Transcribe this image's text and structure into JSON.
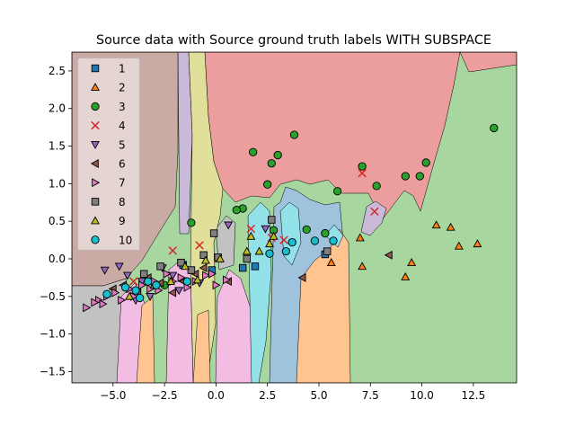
{
  "chart_data": {
    "type": "scatter",
    "title": "Source data with Source ground truth labels WITH SUBSPACE",
    "xlabel": "",
    "ylabel": "",
    "xlim": [
      -7.0,
      14.6
    ],
    "ylim": [
      -1.65,
      2.75
    ],
    "xticks": [
      -5.0,
      -2.5,
      0.0,
      2.5,
      5.0,
      7.5,
      10.0,
      12.5
    ],
    "xtick_labels": [
      "−5.0",
      "−2.5",
      "0.0",
      "2.5",
      "5.0",
      "7.5",
      "10.0",
      "12.5"
    ],
    "yticks": [
      -1.5,
      -1.0,
      -0.5,
      0.0,
      0.5,
      1.0,
      1.5,
      2.0,
      2.5
    ],
    "ytick_labels": [
      "−1.5",
      "−1.0",
      "−0.5",
      "0.0",
      "0.5",
      "1.0",
      "1.5",
      "2.0",
      "2.5"
    ],
    "grid": false,
    "legend_position": "top-left",
    "background_regions": [
      {
        "class": "1",
        "color": "#9fc2dd"
      },
      {
        "class": "2",
        "color": "#ffc48f"
      },
      {
        "class": "3",
        "color": "#a7d69f"
      },
      {
        "class": "4",
        "color": "#ec9e9f"
      },
      {
        "class": "5",
        "color": "#cab9d8"
      },
      {
        "class": "6",
        "color": "#c9aaa4"
      },
      {
        "class": "7",
        "color": "#f2bce3"
      },
      {
        "class": "8",
        "color": "#c2c2c2"
      },
      {
        "class": "9",
        "color": "#e0e09a"
      },
      {
        "class": "10",
        "color": "#93e2ea"
      }
    ],
    "series": [
      {
        "name": "1",
        "marker": "square",
        "color": "#1f77b4",
        "points": [
          [
            1.3,
            -0.12
          ],
          [
            1.9,
            -0.1
          ],
          [
            5.3,
            0.06
          ],
          [
            -1.6,
            -0.08
          ],
          [
            -0.2,
            -0.15
          ]
        ]
      },
      {
        "name": "2",
        "marker": "triangle-up",
        "color": "#ff7f0e",
        "points": [
          [
            7.0,
            0.28
          ],
          [
            7.1,
            -0.1
          ],
          [
            10.7,
            0.45
          ],
          [
            11.4,
            0.42
          ],
          [
            12.7,
            0.2
          ],
          [
            11.8,
            0.17
          ],
          [
            9.5,
            -0.05
          ],
          [
            9.2,
            -0.24
          ],
          [
            5.6,
            -0.05
          ]
        ]
      },
      {
        "name": "3",
        "marker": "circle",
        "color": "#2ca02c",
        "points": [
          [
            13.5,
            1.74
          ],
          [
            10.2,
            1.28
          ],
          [
            9.2,
            1.1
          ],
          [
            9.9,
            1.1
          ],
          [
            7.8,
            0.97
          ],
          [
            7.1,
            1.23
          ],
          [
            3.8,
            1.65
          ],
          [
            1.8,
            1.42
          ],
          [
            2.7,
            1.27
          ],
          [
            3.0,
            1.38
          ],
          [
            2.5,
            0.99
          ],
          [
            5.9,
            0.9
          ],
          [
            1.3,
            0.67
          ],
          [
            1.0,
            0.65
          ],
          [
            -1.2,
            0.48
          ],
          [
            4.4,
            0.39
          ],
          [
            2.8,
            0.38
          ],
          [
            5.3,
            0.34
          ],
          [
            -2.5,
            -0.35
          ]
        ]
      },
      {
        "name": "4",
        "marker": "x",
        "color": "#d62728",
        "points": [
          [
            7.1,
            1.14
          ],
          [
            7.7,
            0.63
          ],
          [
            -2.1,
            0.11
          ],
          [
            -0.8,
            0.18
          ],
          [
            3.3,
            0.25
          ],
          [
            1.7,
            0.4
          ],
          [
            2.7,
            0.28
          ],
          [
            0.1,
            0.0
          ],
          [
            -4.0,
            -0.3
          ]
        ]
      },
      {
        "name": "5",
        "marker": "triangle-down",
        "color": "#9467bd",
        "points": [
          [
            -5.4,
            -0.15
          ],
          [
            -4.7,
            -0.1
          ],
          [
            -4.3,
            -0.22
          ],
          [
            -3.6,
            -0.3
          ],
          [
            -3.9,
            -0.55
          ],
          [
            -2.6,
            -0.12
          ],
          [
            -2.1,
            -0.22
          ],
          [
            -0.8,
            -0.32
          ],
          [
            0.6,
            0.45
          ],
          [
            2.4,
            0.4
          ],
          [
            -1.8,
            -0.42
          ],
          [
            -3.2,
            -0.5
          ]
        ]
      },
      {
        "name": "6",
        "marker": "triangle-left",
        "color": "#8c564b",
        "points": [
          [
            8.4,
            0.05
          ],
          [
            4.2,
            -0.25
          ],
          [
            -0.6,
            -0.12
          ],
          [
            -1.0,
            -0.2
          ],
          [
            0.6,
            -0.3
          ],
          [
            -3.3,
            -0.25
          ],
          [
            -2.7,
            -0.32
          ],
          [
            -4.5,
            -0.35
          ],
          [
            -5.0,
            -0.4
          ],
          [
            -1.6,
            -0.3
          ],
          [
            -2.1,
            -0.45
          ],
          [
            -3.8,
            -0.45
          ]
        ]
      },
      {
        "name": "7",
        "marker": "triangle-right",
        "color": "#e377c2",
        "points": [
          [
            -6.3,
            -0.65
          ],
          [
            -5.7,
            -0.55
          ],
          [
            -5.5,
            -0.6
          ],
          [
            -5.3,
            -0.5
          ],
          [
            -4.9,
            -0.45
          ],
          [
            -4.6,
            -0.55
          ],
          [
            -4.2,
            -0.4
          ],
          [
            -3.6,
            -0.35
          ],
          [
            -3.2,
            -0.4
          ],
          [
            -2.8,
            -0.42
          ],
          [
            -2.4,
            -0.2
          ],
          [
            -2.1,
            -0.3
          ],
          [
            -1.7,
            -0.25
          ],
          [
            -1.4,
            -0.38
          ],
          [
            -1.0,
            -0.3
          ],
          [
            -0.5,
            -0.22
          ],
          [
            0.0,
            -0.35
          ],
          [
            0.5,
            -0.28
          ],
          [
            -5.9,
            -0.58
          ],
          [
            -4.0,
            -0.5
          ],
          [
            -3.0,
            -0.3
          ],
          [
            -0.2,
            -0.2
          ]
        ]
      },
      {
        "name": "8",
        "marker": "square",
        "color": "#7f7f7f",
        "points": [
          [
            -0.1,
            0.34
          ],
          [
            0.1,
            0.02
          ],
          [
            2.7,
            0.52
          ],
          [
            5.4,
            0.1
          ],
          [
            -1.7,
            -0.05
          ],
          [
            -2.7,
            -0.1
          ],
          [
            -1.2,
            -0.15
          ],
          [
            -3.5,
            -0.2
          ],
          [
            -0.6,
            0.05
          ],
          [
            1.5,
            0.0
          ]
        ]
      },
      {
        "name": "9",
        "marker": "triangle-up",
        "color": "#bcbd22",
        "points": [
          [
            1.7,
            0.3
          ],
          [
            2.8,
            0.3
          ],
          [
            2.6,
            0.2
          ],
          [
            1.5,
            0.1
          ],
          [
            2.1,
            0.1
          ],
          [
            -0.5,
            -0.02
          ],
          [
            0.2,
            0.0
          ],
          [
            -1.5,
            -0.1
          ],
          [
            -3.0,
            -0.35
          ],
          [
            -2.2,
            -0.3
          ],
          [
            -4.2,
            -0.5
          ],
          [
            -0.9,
            -0.28
          ]
        ]
      },
      {
        "name": "10",
        "marker": "circle",
        "color": "#17becf",
        "points": [
          [
            4.8,
            0.24
          ],
          [
            5.7,
            0.24
          ],
          [
            3.4,
            0.1
          ],
          [
            3.7,
            0.22
          ],
          [
            2.6,
            0.07
          ],
          [
            -2.9,
            -0.35
          ],
          [
            -3.3,
            -0.3
          ],
          [
            -3.9,
            -0.42
          ],
          [
            -5.3,
            -0.47
          ],
          [
            -1.4,
            -0.3
          ],
          [
            -4.4,
            -0.38
          ],
          [
            -3.7,
            -0.52
          ]
        ]
      }
    ]
  }
}
